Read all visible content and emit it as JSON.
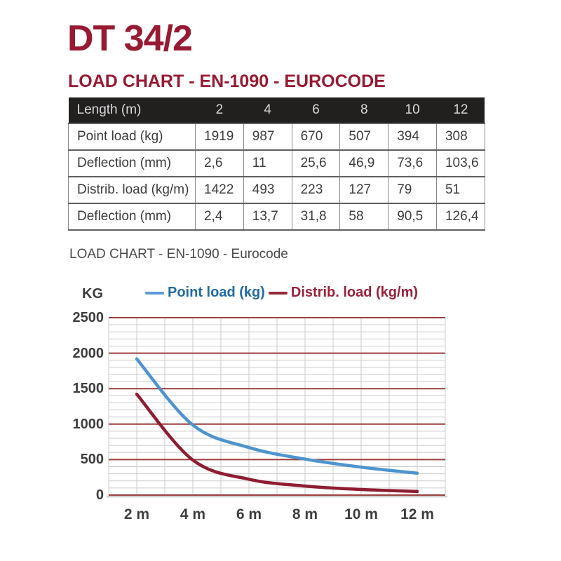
{
  "page": {
    "title": "DT 34/2",
    "heading": "LOAD CHART - EN-1090 - EUROCODE",
    "subheading": "LOAD CHART - EN-1090 - Eurocode"
  },
  "table": {
    "header": {
      "label": "Length (m)",
      "columns": [
        "2",
        "4",
        "6",
        "8",
        "10",
        "12"
      ]
    },
    "rows": [
      {
        "label": "Point load (kg)",
        "values": [
          "1919",
          "987",
          "670",
          "507",
          "394",
          "308"
        ]
      },
      {
        "label": "Deflection (mm)",
        "values": [
          "2,6",
          "11",
          "25,6",
          "46,9",
          "73,6",
          "103,6"
        ]
      },
      {
        "label": "Distrib. load (kg/m)",
        "values": [
          "1422",
          "493",
          "223",
          "127",
          "79",
          "51"
        ]
      },
      {
        "label": "Deflection (mm)",
        "values": [
          "2,4",
          "13,7",
          "31,8",
          "58",
          "90,5",
          "126,4"
        ]
      }
    ]
  },
  "chart_data": {
    "type": "line",
    "title": "LOAD CHART - EN-1090 - Eurocode",
    "ylabel": "KG",
    "xlabel": "",
    "x": [
      2,
      4,
      6,
      8,
      10,
      12
    ],
    "x_tick_labels": [
      "2 m",
      "4 m",
      "6 m",
      "8 m",
      "10 m",
      "12 m"
    ],
    "series": [
      {
        "name": "Point load (kg)",
        "values": [
          1919,
          987,
          670,
          507,
          394,
          308
        ],
        "line_color": "#4E94CE",
        "legend_dash_color": "#5B9BD5",
        "legend_text_color": "#1F6BA5"
      },
      {
        "name": "Distrib. load (kg/m)",
        "values": [
          1422,
          493,
          223,
          127,
          79,
          51
        ],
        "line_color": "#8E1D32",
        "legend_dash_color": "#96293B",
        "legend_text_color": "#9C2139"
      }
    ],
    "xlim": [
      1,
      13
    ],
    "ylim": [
      0,
      2500
    ],
    "y_ticks": [
      0,
      500,
      1000,
      1500,
      2000,
      2500
    ],
    "y_minor_step": 100,
    "x_minor_step": 1,
    "grid": true,
    "legend_position": "top",
    "major_grid_color": "#9C3F3E",
    "minor_grid_color": "#CBCBCB",
    "axis_line_color": "#B5B5B5"
  },
  "colors": {
    "accent_maroon": "#981A32",
    "table_header_bg": "#221F1F",
    "table_header_text": "#D9D9D9",
    "body_text": "#3C3C3C"
  }
}
